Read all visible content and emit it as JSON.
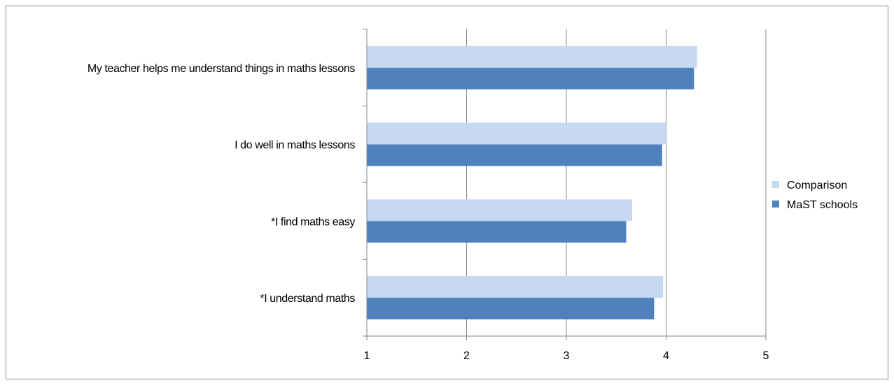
{
  "chart_data": {
    "type": "bar",
    "orientation": "horizontal",
    "title": "",
    "xlabel": "",
    "ylabel": "",
    "categories": [
      "My teacher helps me understand things in maths lessons",
      "I do well in maths lessons",
      "*I find maths easy",
      "*I understand maths"
    ],
    "series": [
      {
        "name": "Comparison",
        "color": "#c6d9f1",
        "values": [
          4.31,
          4.0,
          3.66,
          3.97
        ]
      },
      {
        "name": "MaST schools",
        "color": "#4f81bd",
        "values": [
          4.28,
          3.96,
          3.6,
          3.88
        ]
      }
    ],
    "xlim": [
      1,
      5
    ],
    "xticks": [
      "1",
      "2",
      "3",
      "4",
      "5"
    ],
    "grid": "vertical",
    "legend_position": "right"
  }
}
